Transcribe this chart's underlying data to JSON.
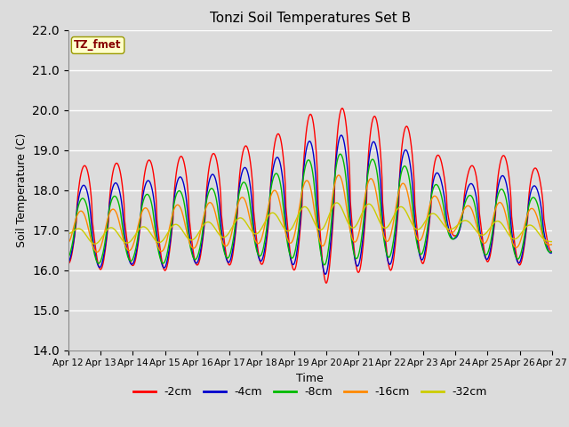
{
  "title": "Tonzi Soil Temperatures Set B",
  "xlabel": "Time",
  "ylabel": "Soil Temperature (C)",
  "ylim": [
    14.0,
    22.0
  ],
  "yticks": [
    14.0,
    15.0,
    16.0,
    17.0,
    18.0,
    19.0,
    20.0,
    21.0,
    22.0
  ],
  "xtick_labels": [
    "Apr 12",
    "Apr 13",
    "Apr 14",
    "Apr 15",
    "Apr 16",
    "Apr 17",
    "Apr 18",
    "Apr 19",
    "Apr 20",
    "Apr 21",
    "Apr 22",
    "Apr 23",
    "Apr 24",
    "Apr 25",
    "Apr 26",
    "Apr 27"
  ],
  "background_color": "#dcdcdc",
  "plot_bg_color": "#dcdcdc",
  "legend_label": "TZ_fmet",
  "legend_bg": "#ffffcc",
  "legend_border": "#999900",
  "series_colors": [
    "#ff0000",
    "#0000cc",
    "#00bb00",
    "#ff8800",
    "#cccc00"
  ],
  "series_labels": [
    "-2cm",
    "-4cm",
    "-8cm",
    "-16cm",
    "-32cm"
  ],
  "n_points": 721
}
